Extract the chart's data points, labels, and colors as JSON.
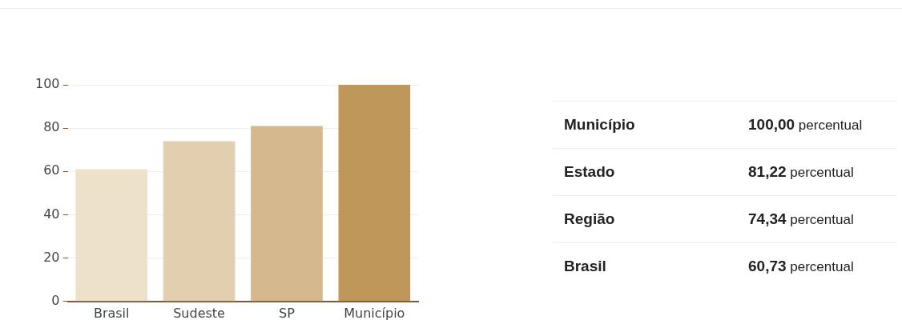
{
  "chart_data": [
    {
      "type": "bar",
      "categories": [
        "Brasil",
        "Sudeste",
        "SP",
        "Município"
      ],
      "values": [
        61,
        74,
        81,
        100
      ],
      "colors": [
        "#ede1cc",
        "#e2cfb0",
        "#d6b88e",
        "#c0975a"
      ],
      "ylim": [
        0,
        100
      ],
      "yticks": [
        0,
        20,
        40,
        60,
        80,
        100
      ],
      "grid": "y",
      "legend": false
    },
    {
      "type": "other",
      "categories": [
        "Município",
        "Estado",
        "Região",
        "Brasil"
      ],
      "value_labels": [
        "100,00",
        "81,22",
        "74,34",
        "60,73"
      ],
      "annotations": [
        "percentual",
        "percentual",
        "percentual",
        "percentual"
      ]
    }
  ]
}
